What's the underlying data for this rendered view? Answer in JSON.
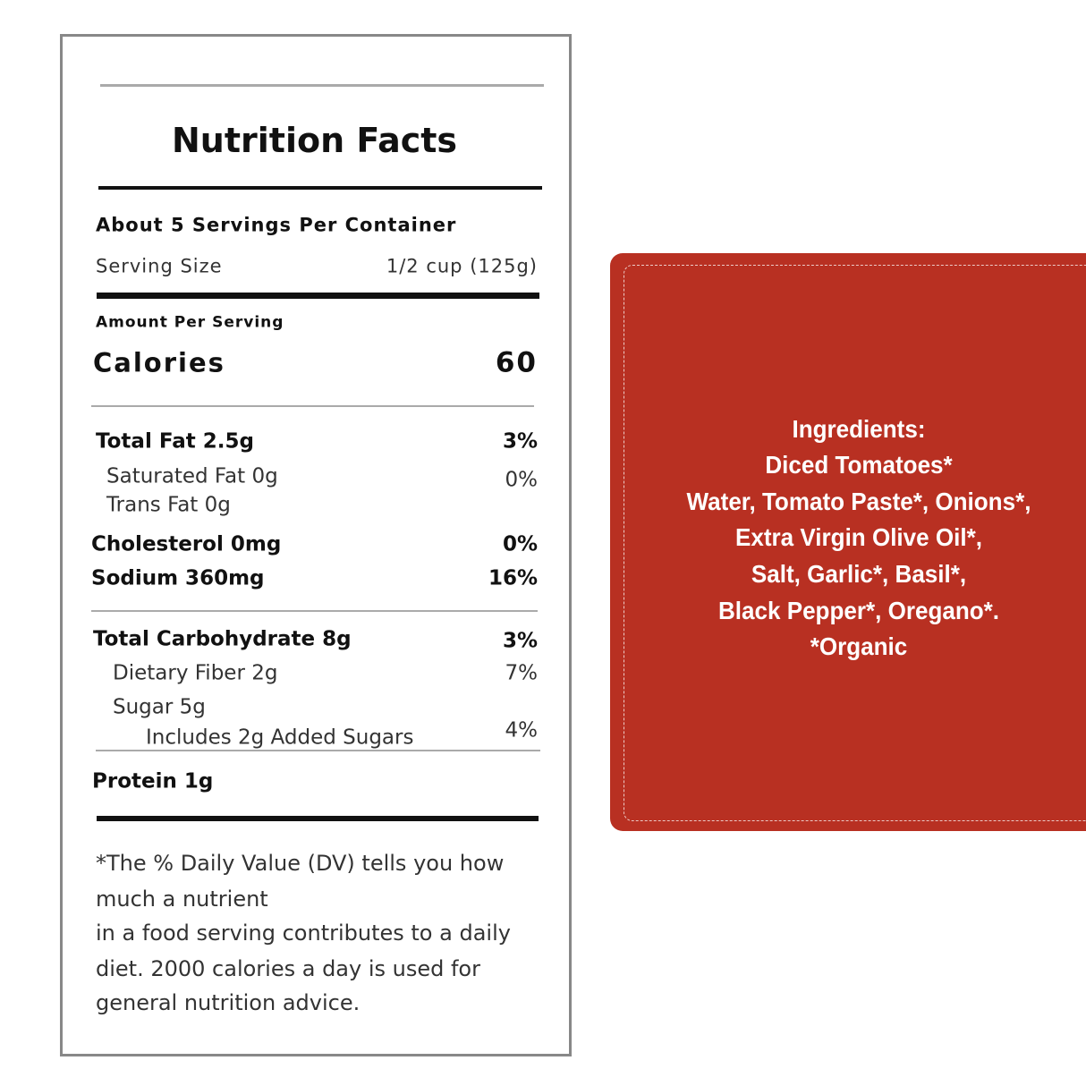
{
  "nutrition": {
    "title": "Nutrition Facts",
    "servings": "About 5 Servings Per Container",
    "serving_size_label": "Serving Size",
    "serving_size_value": "1/2 cup (125g)",
    "amount_per_serving": "Amount Per Serving",
    "calories_label": "Calories",
    "calories_value": "60",
    "rows": [
      {
        "label": "Total Fat 2.5g",
        "dv": "3%"
      },
      {
        "label": "Saturated Fat 0g",
        "dv": "0%"
      },
      {
        "label": "Trans Fat 0g"
      },
      {
        "label": "Cholesterol 0mg",
        "dv": "0%"
      },
      {
        "label": "Sodium 360mg",
        "dv": "16%"
      },
      {
        "label": "Total Carbohydrate 8g",
        "dv": "3%"
      },
      {
        "label": "Dietary Fiber 2g",
        "dv": "7%"
      },
      {
        "label": "Sugar 5g"
      },
      {
        "label": "Includes 2g Added Sugars",
        "dv": "4%"
      },
      {
        "label": "Protein 1g"
      }
    ],
    "footnote": [
      "*The % Daily Value (DV) tells you how",
      "much a nutrient",
      "in a food serving contributes to a daily",
      "diet. 2000 calories a day is used for",
      "general nutrition advice."
    ]
  },
  "ingredients": {
    "lines": [
      "Ingredients:",
      "Diced Tomatoes*",
      "Water, Tomato Paste*, Onions*,",
      "Extra Virgin Olive Oil*,",
      "Salt, Garlic*, Basil*,",
      "Black Pepper*, Oregano*.",
      "*Organic"
    ]
  }
}
